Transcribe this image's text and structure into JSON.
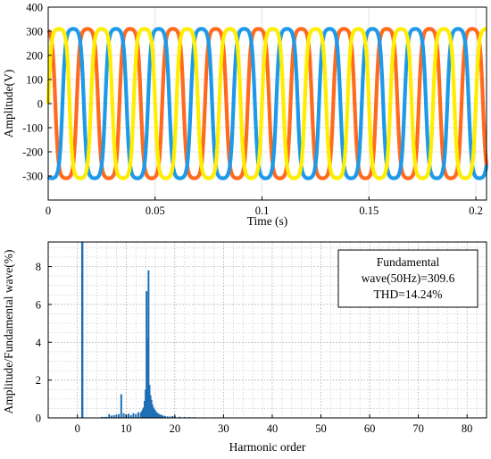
{
  "chart_data": [
    {
      "type": "line",
      "xlabel": "Time (s)",
      "ylabel": "Amplitude(V)",
      "xlim": [
        0,
        0.205
      ],
      "ylim": [
        -400,
        400
      ],
      "xticks": [
        0,
        0.05,
        0.1,
        0.15,
        0.2
      ],
      "xtick_labels": [
        "0",
        "0.05",
        "0.1",
        "0.15",
        "0.2"
      ],
      "yticks": [
        -300,
        -200,
        -100,
        0,
        100,
        200,
        300,
        400
      ],
      "ytick_labels": [
        "-300",
        "-200",
        "-100",
        "0",
        "100",
        "200",
        "300",
        "400"
      ],
      "grid": true,
      "frequency_hz": 50,
      "waveform": "flat-topped sine (three-phase)",
      "series": [
        {
          "color": "#ff6a1f",
          "amplitude": 310,
          "phase_deg": 120
        },
        {
          "color": "#1e9ae8",
          "amplitude": 310,
          "phase_deg": -120
        },
        {
          "color": "#ffee00",
          "amplitude": 310,
          "phase_deg": 0
        }
      ]
    },
    {
      "type": "bar",
      "xlabel": "Harmonic order",
      "ylabel": "Amplitude/Fundamental wave(%)",
      "xlim": [
        -6,
        84
      ],
      "ylim": [
        0,
        9.3
      ],
      "xticks": [
        0,
        10,
        20,
        30,
        40,
        50,
        60,
        70,
        80
      ],
      "xtick_labels": [
        "0",
        "10",
        "20",
        "30",
        "40",
        "50",
        "60",
        "70",
        "80"
      ],
      "yticks": [
        0,
        2,
        4,
        6,
        8
      ],
      "ytick_labels": [
        "0",
        "2",
        "4",
        "6",
        "8"
      ],
      "grid": true,
      "color": "#1f6fb5",
      "annotation": [
        "Fundamental",
        "wave(50Hz)=309.6",
        "THD=14.24%"
      ],
      "fundamental_order": 1,
      "points": [
        [
          5,
          0.05
        ],
        [
          5.5,
          0.05
        ],
        [
          6,
          0.06
        ],
        [
          6.5,
          0.2
        ],
        [
          7,
          0.12
        ],
        [
          7.5,
          0.15
        ],
        [
          8,
          0.18
        ],
        [
          8.5,
          0.2
        ],
        [
          9,
          1.25
        ],
        [
          9.5,
          0.25
        ],
        [
          10,
          0.18
        ],
        [
          10.5,
          0.22
        ],
        [
          11,
          0.15
        ],
        [
          11.5,
          0.25
        ],
        [
          12,
          0.2
        ],
        [
          12.5,
          0.3
        ],
        [
          13,
          0.28
        ],
        [
          13.2,
          0.35
        ],
        [
          13.4,
          0.45
        ],
        [
          13.6,
          0.55
        ],
        [
          13.8,
          0.9
        ],
        [
          14,
          1.5
        ],
        [
          14.2,
          6.7
        ],
        [
          14.4,
          4.2
        ],
        [
          14.6,
          7.8
        ],
        [
          14.8,
          1.75
        ],
        [
          15,
          1.2
        ],
        [
          15.2,
          0.95
        ],
        [
          15.4,
          0.7
        ],
        [
          15.6,
          0.55
        ],
        [
          15.8,
          0.45
        ],
        [
          16,
          0.4
        ],
        [
          16.2,
          0.3
        ],
        [
          16.4,
          0.28
        ],
        [
          16.6,
          0.22
        ],
        [
          16.8,
          0.2
        ],
        [
          17,
          0.18
        ],
        [
          17.3,
          0.15
        ],
        [
          17.6,
          0.12
        ],
        [
          18,
          0.1
        ],
        [
          18.5,
          0.08
        ],
        [
          19,
          0.07
        ],
        [
          19.5,
          0.1
        ],
        [
          20,
          0.08
        ],
        [
          21,
          0.06
        ],
        [
          22,
          0.05
        ],
        [
          23,
          0.04
        ],
        [
          24,
          0.04
        ],
        [
          26,
          0.03
        ],
        [
          28,
          0.03
        ],
        [
          30,
          0.02
        ],
        [
          32,
          0.02
        ],
        [
          35,
          0.02
        ],
        [
          38,
          0.02
        ],
        [
          41,
          0.02
        ],
        [
          44,
          0.02
        ],
        [
          47,
          0.02
        ],
        [
          50,
          0.01
        ],
        [
          55,
          0.01
        ],
        [
          60,
          0.01
        ],
        [
          65,
          0.01
        ],
        [
          70,
          0.01
        ],
        [
          75,
          0.01
        ],
        [
          80,
          0.01
        ]
      ]
    }
  ]
}
